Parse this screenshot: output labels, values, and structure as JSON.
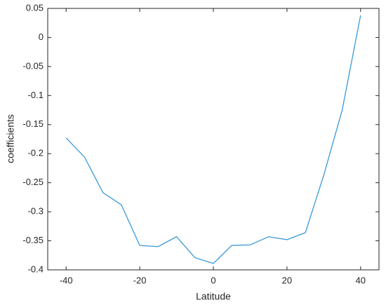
{
  "chart_data": {
    "type": "line",
    "x_label": "Latitude",
    "y_label": "coefficients",
    "x": [
      -40,
      -35,
      -30,
      -25,
      -20,
      -15,
      -10,
      -5,
      0,
      5,
      10,
      15,
      20,
      25,
      30,
      35,
      40
    ],
    "series": [
      {
        "color": "#3a9ad9",
        "values": [
          -0.173,
          -0.206,
          -0.267,
          -0.288,
          -0.358,
          -0.36,
          -0.343,
          -0.379,
          -0.389,
          -0.358,
          -0.357,
          -0.343,
          -0.348,
          -0.336,
          -0.237,
          -0.125,
          0.038
        ]
      }
    ],
    "xlim": [
      -45,
      45
    ],
    "ylim": [
      -0.4,
      0.05
    ],
    "xticks": [
      -40,
      -20,
      0,
      20,
      40
    ],
    "yticks": [
      -0.4,
      -0.35,
      -0.3,
      -0.25,
      -0.2,
      -0.15,
      -0.1,
      -0.05,
      0,
      0.05
    ],
    "grid": false
  }
}
